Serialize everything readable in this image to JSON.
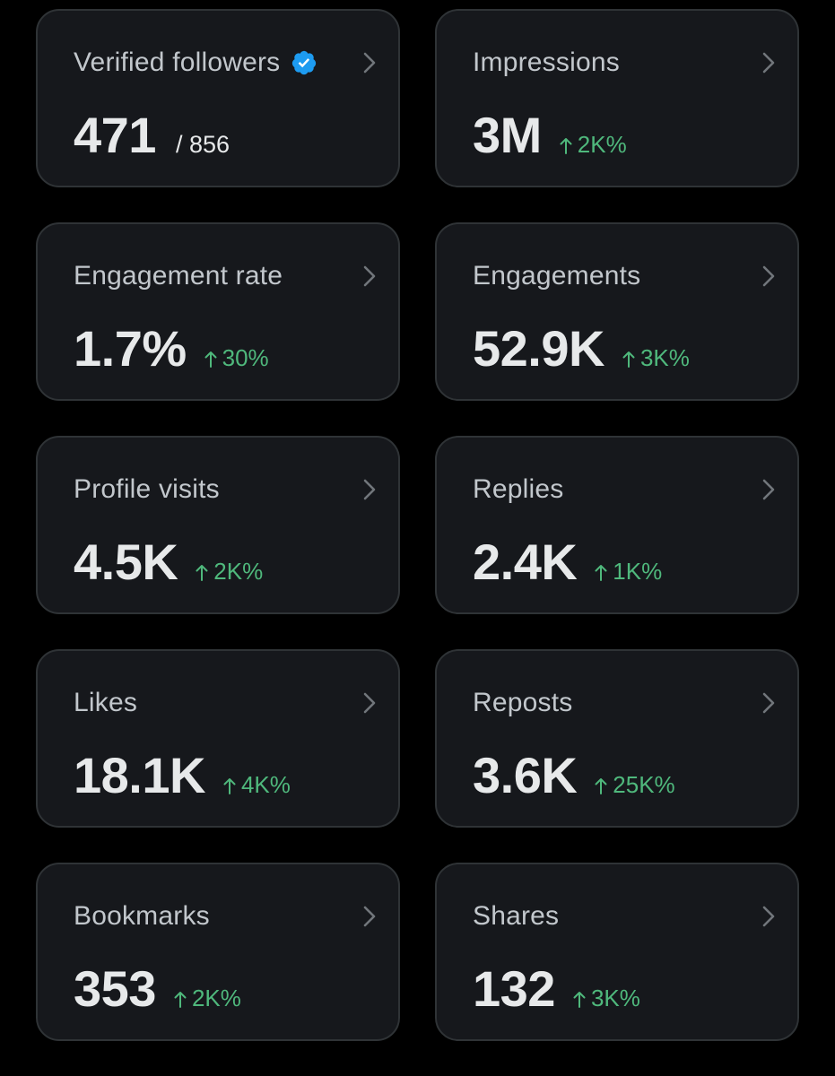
{
  "colors": {
    "background": "#000000",
    "card": "#16181c",
    "card_border": "#2f3336",
    "title": "#c2c7cc",
    "value": "#e7e9ea",
    "positive_change": "#4fb87c",
    "verified_badge": "#1d9bf0"
  },
  "cards": [
    {
      "title": "Verified followers",
      "value": "471",
      "total": "/ 856",
      "icon": "verified-badge-icon"
    },
    {
      "title": "Impressions",
      "value": "3M",
      "change": "2K%"
    },
    {
      "title": "Engagement rate",
      "value": "1.7%",
      "change": "30%"
    },
    {
      "title": "Engagements",
      "value": "52.9K",
      "change": "3K%"
    },
    {
      "title": "Profile visits",
      "value": "4.5K",
      "change": "2K%"
    },
    {
      "title": "Replies",
      "value": "2.4K",
      "change": "1K%"
    },
    {
      "title": "Likes",
      "value": "18.1K",
      "change": "4K%"
    },
    {
      "title": "Reposts",
      "value": "3.6K",
      "change": "25K%"
    },
    {
      "title": "Bookmarks",
      "value": "353",
      "change": "2K%"
    },
    {
      "title": "Shares",
      "value": "132",
      "change": "3K%"
    }
  ],
  "icons": {
    "chevron": "chevron-right-icon",
    "change_arrow": "arrow-up-icon"
  }
}
